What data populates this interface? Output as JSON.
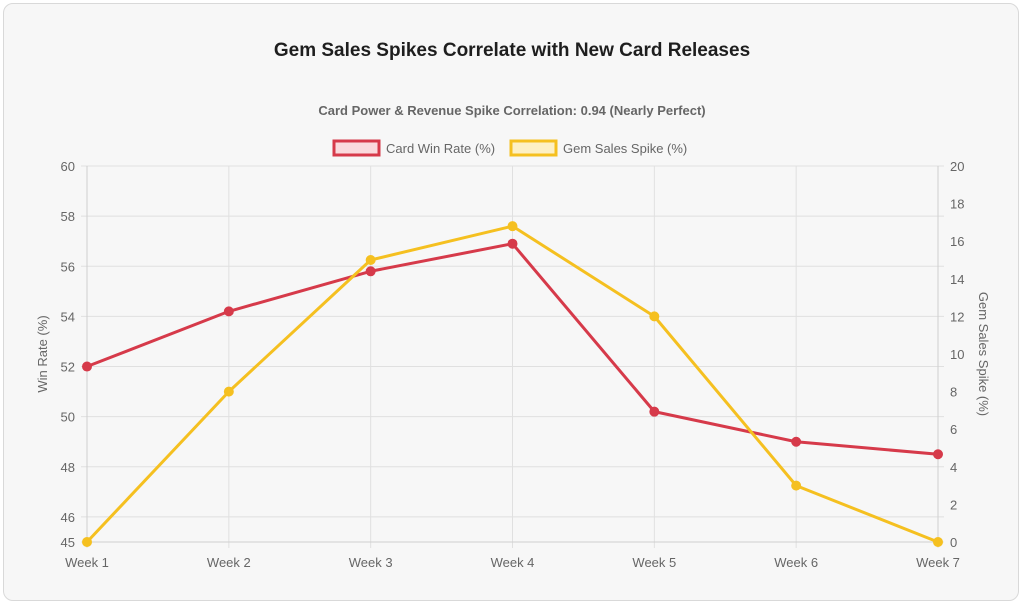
{
  "title": "Gem Sales Spikes Correlate with New Card Releases",
  "chart_data": {
    "type": "line",
    "subtitle": "Card Power & Revenue Spike Correlation: 0.94 (Nearly Perfect)",
    "categories": [
      "Week 1",
      "Week 2",
      "Week 3",
      "Week 4",
      "Week 5",
      "Week 6",
      "Week 7"
    ],
    "series": [
      {
        "name": "Card Win Rate (%)",
        "axis": "left",
        "color": "#d63a4a",
        "fill": "#fadadd",
        "values": [
          52.0,
          54.2,
          55.8,
          56.9,
          50.2,
          49.0,
          48.5
        ]
      },
      {
        "name": "Gem Sales Spike (%)",
        "axis": "right",
        "color": "#f5c020",
        "fill": "#fdf0c4",
        "values": [
          0,
          8,
          15,
          16.8,
          12,
          3,
          0
        ]
      }
    ],
    "y_left": {
      "label": "Win Rate (%)",
      "range": [
        45,
        60
      ],
      "ticks": [
        45,
        46,
        48,
        50,
        52,
        54,
        56,
        58,
        60
      ]
    },
    "y_right": {
      "label": "Gem Sales Spike (%)",
      "range": [
        0,
        20
      ],
      "ticks": [
        0,
        2,
        4,
        6,
        8,
        10,
        12,
        14,
        16,
        18,
        20
      ]
    },
    "legend_position": "top",
    "grid": true
  }
}
